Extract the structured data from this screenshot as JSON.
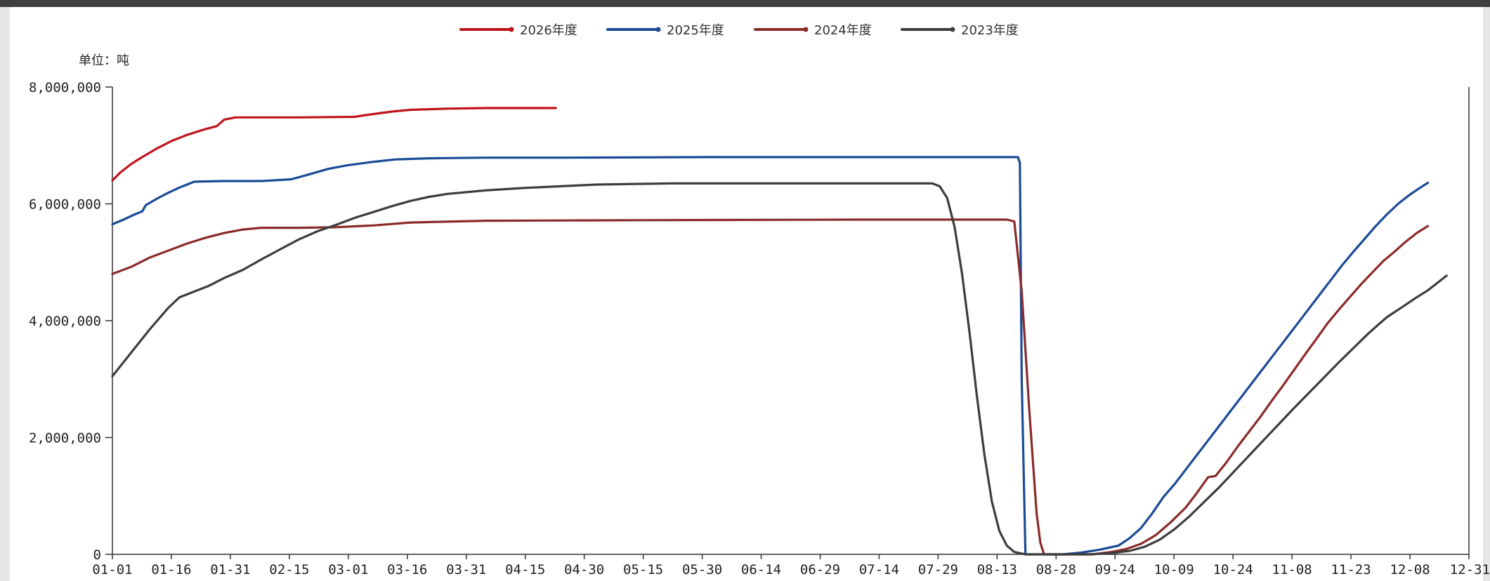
{
  "chart_data": {
    "type": "line",
    "unit_label": "单位：吨",
    "ylim": [
      0,
      8000000
    ],
    "y_ticks": [
      {
        "value": 0,
        "label": "0"
      },
      {
        "value": 2000000,
        "label": "2,000,000"
      },
      {
        "value": 4000000,
        "label": "4,000,000"
      },
      {
        "value": 6000000,
        "label": "6,000,000"
      },
      {
        "value": 8000000,
        "label": "8,000,000"
      }
    ],
    "x_ticks": [
      "01-01",
      "01-16",
      "01-31",
      "02-15",
      "03-01",
      "03-16",
      "03-31",
      "04-15",
      "04-30",
      "05-15",
      "05-30",
      "06-14",
      "06-29",
      "07-14",
      "07-29",
      "08-13",
      "08-28",
      "09-24",
      "10-09",
      "10-24",
      "11-08",
      "11-23",
      "12-08",
      "12-31"
    ],
    "grid": false,
    "legend_position": "top-center",
    "series": [
      {
        "name": "2026年度",
        "color": "#c0141c",
        "points": [
          [
            0,
            6400000
          ],
          [
            2,
            6530000
          ],
          [
            5,
            6680000
          ],
          [
            8,
            6800000
          ],
          [
            12,
            6950000
          ],
          [
            16,
            7080000
          ],
          [
            20,
            7180000
          ],
          [
            25,
            7280000
          ],
          [
            28,
            7330000
          ],
          [
            30,
            7440000
          ],
          [
            33,
            7480000
          ],
          [
            40,
            7480000
          ],
          [
            50,
            7480000
          ],
          [
            65,
            7490000
          ],
          [
            68,
            7520000
          ],
          [
            75,
            7580000
          ],
          [
            80,
            7610000
          ],
          [
            90,
            7630000
          ],
          [
            100,
            7640000
          ],
          [
            110,
            7640000
          ],
          [
            119,
            7640000
          ]
        ]
      },
      {
        "name": "2025年度",
        "color": "#1a4b95",
        "points": [
          [
            0,
            5650000
          ],
          [
            3,
            5730000
          ],
          [
            6,
            5820000
          ],
          [
            8,
            5870000
          ],
          [
            9,
            5980000
          ],
          [
            12,
            6090000
          ],
          [
            15,
            6190000
          ],
          [
            18,
            6280000
          ],
          [
            22,
            6380000
          ],
          [
            30,
            6390000
          ],
          [
            40,
            6390000
          ],
          [
            48,
            6420000
          ],
          [
            52,
            6490000
          ],
          [
            58,
            6600000
          ],
          [
            63,
            6660000
          ],
          [
            70,
            6720000
          ],
          [
            76,
            6760000
          ],
          [
            85,
            6780000
          ],
          [
            100,
            6790000
          ],
          [
            120,
            6790000
          ],
          [
            160,
            6800000
          ],
          [
            200,
            6800000
          ],
          [
            243,
            6800000
          ],
          [
            243.5,
            6700000
          ],
          [
            244,
            3000000
          ],
          [
            245,
            0
          ],
          [
            250,
            0
          ],
          [
            255,
            0
          ],
          [
            260,
            30000
          ],
          [
            265,
            80000
          ],
          [
            270,
            150000
          ],
          [
            273,
            280000
          ],
          [
            276,
            450000
          ],
          [
            279,
            700000
          ],
          [
            282,
            980000
          ],
          [
            285,
            1200000
          ],
          [
            288,
            1450000
          ],
          [
            291,
            1700000
          ],
          [
            294,
            1950000
          ],
          [
            297,
            2200000
          ],
          [
            300,
            2450000
          ],
          [
            303,
            2700000
          ],
          [
            306,
            2950000
          ],
          [
            309,
            3200000
          ],
          [
            312,
            3450000
          ],
          [
            315,
            3700000
          ],
          [
            318,
            3950000
          ],
          [
            321,
            4200000
          ],
          [
            324,
            4450000
          ],
          [
            327,
            4700000
          ],
          [
            330,
            4950000
          ],
          [
            333,
            5180000
          ],
          [
            336,
            5400000
          ],
          [
            339,
            5620000
          ],
          [
            342,
            5820000
          ],
          [
            345,
            6000000
          ],
          [
            348,
            6150000
          ],
          [
            351,
            6280000
          ],
          [
            353,
            6360000
          ]
        ]
      },
      {
        "name": "2024年度",
        "color": "#8b2a2a",
        "points": [
          [
            0,
            4800000
          ],
          [
            5,
            4920000
          ],
          [
            10,
            5080000
          ],
          [
            15,
            5200000
          ],
          [
            20,
            5320000
          ],
          [
            25,
            5420000
          ],
          [
            30,
            5500000
          ],
          [
            35,
            5560000
          ],
          [
            40,
            5590000
          ],
          [
            50,
            5590000
          ],
          [
            60,
            5600000
          ],
          [
            70,
            5630000
          ],
          [
            80,
            5680000
          ],
          [
            100,
            5710000
          ],
          [
            140,
            5720000
          ],
          [
            200,
            5730000
          ],
          [
            240,
            5730000
          ],
          [
            242,
            5700000
          ],
          [
            244,
            4500000
          ],
          [
            246,
            2500000
          ],
          [
            248,
            700000
          ],
          [
            249,
            200000
          ],
          [
            250,
            0
          ],
          [
            258,
            0
          ],
          [
            263,
            0
          ],
          [
            268,
            40000
          ],
          [
            272,
            90000
          ],
          [
            276,
            180000
          ],
          [
            280,
            330000
          ],
          [
            284,
            550000
          ],
          [
            288,
            800000
          ],
          [
            291,
            1050000
          ],
          [
            294,
            1320000
          ],
          [
            296,
            1340000
          ],
          [
            299,
            1580000
          ],
          [
            302,
            1850000
          ],
          [
            305,
            2100000
          ],
          [
            308,
            2350000
          ],
          [
            311,
            2620000
          ],
          [
            314,
            2880000
          ],
          [
            317,
            3150000
          ],
          [
            320,
            3420000
          ],
          [
            323,
            3680000
          ],
          [
            326,
            3950000
          ],
          [
            329,
            4180000
          ],
          [
            332,
            4400000
          ],
          [
            335,
            4620000
          ],
          [
            338,
            4820000
          ],
          [
            341,
            5020000
          ],
          [
            344,
            5180000
          ],
          [
            347,
            5350000
          ],
          [
            350,
            5500000
          ],
          [
            353,
            5620000
          ]
        ]
      },
      {
        "name": "2023年度",
        "color": "#3d3d3d",
        "points": [
          [
            0,
            3050000
          ],
          [
            5,
            3450000
          ],
          [
            10,
            3850000
          ],
          [
            15,
            4220000
          ],
          [
            18,
            4400000
          ],
          [
            22,
            4500000
          ],
          [
            26,
            4600000
          ],
          [
            30,
            4730000
          ],
          [
            35,
            4870000
          ],
          [
            40,
            5050000
          ],
          [
            45,
            5220000
          ],
          [
            50,
            5390000
          ],
          [
            55,
            5530000
          ],
          [
            60,
            5640000
          ],
          [
            65,
            5760000
          ],
          [
            70,
            5860000
          ],
          [
            75,
            5960000
          ],
          [
            80,
            6050000
          ],
          [
            85,
            6120000
          ],
          [
            90,
            6170000
          ],
          [
            100,
            6230000
          ],
          [
            110,
            6270000
          ],
          [
            120,
            6300000
          ],
          [
            130,
            6330000
          ],
          [
            150,
            6350000
          ],
          [
            200,
            6350000
          ],
          [
            220,
            6350000
          ],
          [
            222,
            6300000
          ],
          [
            224,
            6100000
          ],
          [
            226,
            5600000
          ],
          [
            228,
            4800000
          ],
          [
            230,
            3800000
          ],
          [
            232,
            2700000
          ],
          [
            234,
            1700000
          ],
          [
            236,
            900000
          ],
          [
            238,
            400000
          ],
          [
            240,
            150000
          ],
          [
            242,
            40000
          ],
          [
            245,
            0
          ],
          [
            255,
            0
          ],
          [
            262,
            0
          ],
          [
            268,
            20000
          ],
          [
            273,
            60000
          ],
          [
            277,
            130000
          ],
          [
            281,
            250000
          ],
          [
            285,
            430000
          ],
          [
            289,
            650000
          ],
          [
            293,
            900000
          ],
          [
            297,
            1150000
          ],
          [
            301,
            1420000
          ],
          [
            305,
            1690000
          ],
          [
            309,
            1960000
          ],
          [
            313,
            2230000
          ],
          [
            317,
            2500000
          ],
          [
            321,
            2760000
          ],
          [
            325,
            3020000
          ],
          [
            329,
            3280000
          ],
          [
            333,
            3530000
          ],
          [
            337,
            3780000
          ],
          [
            340,
            3950000
          ],
          [
            342,
            4060000
          ],
          [
            346,
            4230000
          ],
          [
            350,
            4400000
          ],
          [
            353,
            4520000
          ],
          [
            358,
            4770000
          ]
        ]
      }
    ]
  }
}
